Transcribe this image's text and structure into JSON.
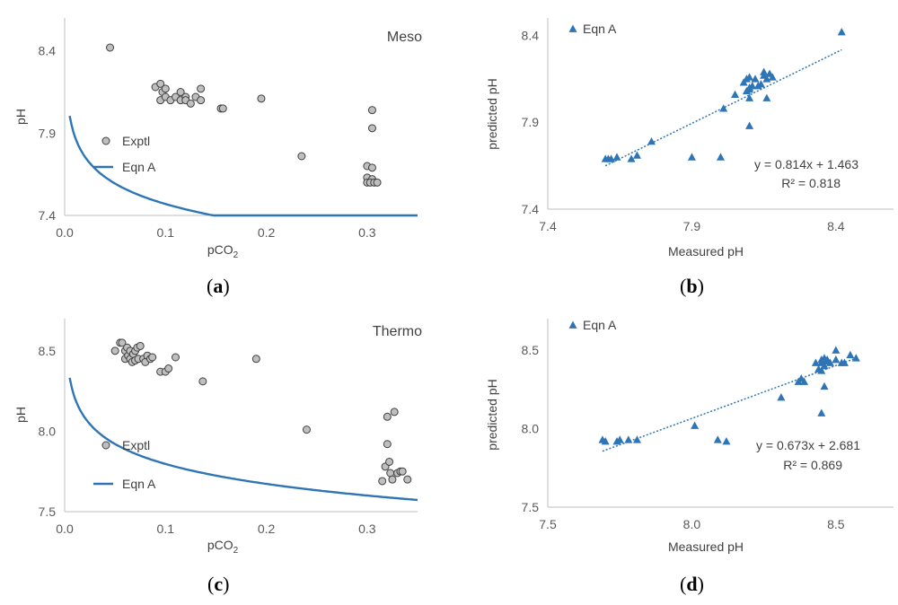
{
  "chart_data": [
    {
      "id": "a",
      "type": "scatter",
      "title": "Meso",
      "xlabel": "pCO2",
      "ylabel": "pH",
      "xlim": [
        0.0,
        0.35
      ],
      "ylim": [
        7.4,
        8.6
      ],
      "xticks": [
        "0.0",
        "0.1",
        "0.2",
        "0.3"
      ],
      "yticks": [
        "7.4",
        "7.9",
        "8.4"
      ],
      "xtick_values": [
        0.0,
        0.1,
        0.2,
        0.3
      ],
      "ytick_values": [
        7.4,
        7.9,
        8.4
      ],
      "legend": [
        "Exptl",
        "Eqn A"
      ],
      "series": [
        {
          "name": "Exptl",
          "kind": "points",
          "x": [
            0.045,
            0.09,
            0.095,
            0.097,
            0.1,
            0.095,
            0.1,
            0.105,
            0.11,
            0.115,
            0.115,
            0.12,
            0.12,
            0.125,
            0.13,
            0.135,
            0.135,
            0.155,
            0.157,
            0.195,
            0.235,
            0.3,
            0.305,
            0.3,
            0.305,
            0.3,
            0.303,
            0.307,
            0.31,
            0.305,
            0.305
          ],
          "y": [
            8.42,
            8.18,
            8.2,
            8.15,
            8.17,
            8.1,
            8.12,
            8.1,
            8.12,
            8.15,
            8.1,
            8.12,
            8.1,
            8.08,
            8.12,
            8.17,
            8.1,
            8.05,
            8.05,
            8.11,
            7.76,
            7.7,
            7.69,
            7.63,
            7.62,
            7.6,
            7.6,
            7.6,
            7.6,
            8.04,
            7.93
          ]
        },
        {
          "name": "Eqn A",
          "kind": "curve",
          "formula": {
            "A": 7.058,
            "B": -0.98
          }
        }
      ]
    },
    {
      "id": "b",
      "type": "scatter",
      "title": "",
      "xlabel": "Measured pH",
      "ylabel": "predicted pH",
      "xlim": [
        7.4,
        8.6
      ],
      "ylim": [
        7.4,
        8.5
      ],
      "xticks": [
        "7.4",
        "7.9",
        "8.4"
      ],
      "yticks": [
        "7.4",
        "7.9",
        "8.4"
      ],
      "xtick_values": [
        7.4,
        7.9,
        8.4
      ],
      "ytick_values": [
        7.4,
        7.9,
        8.4
      ],
      "legend": [
        "Eqn A"
      ],
      "series": [
        {
          "name": "Eqn A",
          "kind": "points",
          "x": [
            7.6,
            7.61,
            7.62,
            7.64,
            7.69,
            7.71,
            7.76,
            7.9,
            8.0,
            8.01,
            8.05,
            8.08,
            8.09,
            8.09,
            8.1,
            8.1,
            8.1,
            8.1,
            8.11,
            8.12,
            8.13,
            8.14,
            8.15,
            8.15,
            8.16,
            8.17,
            8.18,
            8.1,
            8.16,
            8.42
          ],
          "y": [
            7.69,
            7.69,
            7.69,
            7.7,
            7.69,
            7.71,
            7.79,
            7.7,
            7.7,
            7.98,
            8.06,
            8.13,
            8.15,
            8.08,
            8.1,
            8.16,
            8.09,
            8.04,
            8.11,
            8.15,
            8.11,
            8.12,
            8.17,
            8.19,
            8.15,
            8.18,
            8.16,
            7.88,
            8.04,
            8.42
          ]
        },
        {
          "name": "trendline",
          "kind": "trend",
          "slope": 0.814,
          "intercept": 1.463,
          "x_range": [
            7.6,
            8.42
          ]
        }
      ],
      "annotations": [
        "y = 0.814x + 1.463",
        "R² = 0.818"
      ]
    },
    {
      "id": "c",
      "type": "scatter",
      "title": "Thermo",
      "xlabel": "pCO2",
      "ylabel": "pH",
      "xlim": [
        0.0,
        0.35
      ],
      "ylim": [
        7.5,
        8.7
      ],
      "xticks": [
        "0.0",
        "0.1",
        "0.2",
        "0.3"
      ],
      "yticks": [
        "7.5",
        "8.0",
        "8.5"
      ],
      "xtick_values": [
        0.0,
        0.1,
        0.2,
        0.3
      ],
      "ytick_values": [
        7.5,
        8.0,
        8.5
      ],
      "legend": [
        "Exptl",
        "Eqn A"
      ],
      "series": [
        {
          "name": "Exptl",
          "kind": "points",
          "x": [
            0.05,
            0.055,
            0.057,
            0.06,
            0.06,
            0.062,
            0.063,
            0.065,
            0.065,
            0.067,
            0.068,
            0.07,
            0.07,
            0.072,
            0.073,
            0.075,
            0.078,
            0.08,
            0.082,
            0.085,
            0.087,
            0.095,
            0.1,
            0.103,
            0.11,
            0.137,
            0.19,
            0.24,
            0.315,
            0.318,
            0.32,
            0.322,
            0.323,
            0.325,
            0.33,
            0.333,
            0.335,
            0.34,
            0.32,
            0.327
          ],
          "y": [
            8.5,
            8.55,
            8.55,
            8.45,
            8.5,
            8.52,
            8.47,
            8.45,
            8.5,
            8.43,
            8.48,
            8.44,
            8.5,
            8.52,
            8.45,
            8.53,
            8.45,
            8.43,
            8.47,
            8.45,
            8.46,
            8.37,
            8.37,
            8.39,
            8.46,
            8.31,
            8.45,
            8.01,
            7.69,
            7.78,
            7.92,
            7.81,
            7.74,
            7.7,
            7.74,
            7.75,
            7.75,
            7.7,
            8.09,
            8.12
          ]
        },
        {
          "name": "Eqn A",
          "kind": "curve",
          "formula": {
            "A": 7.385,
            "B": -0.98
          }
        }
      ]
    },
    {
      "id": "d",
      "type": "scatter",
      "title": "",
      "xlabel": "Measured pH",
      "ylabel": "predicted pH",
      "xlim": [
        7.5,
        8.7
      ],
      "ylim": [
        7.5,
        8.7
      ],
      "xticks": [
        "7.5",
        "8.0",
        "8.5"
      ],
      "yticks": [
        "7.5",
        "8.0",
        "8.5"
      ],
      "xtick_values": [
        7.5,
        8.0,
        8.5
      ],
      "ytick_values": [
        7.5,
        8.0,
        8.5
      ],
      "legend": [
        "Eqn A"
      ],
      "series": [
        {
          "name": "Eqn A",
          "kind": "points",
          "x": [
            7.69,
            7.7,
            7.74,
            7.75,
            7.78,
            7.81,
            8.01,
            8.09,
            8.12,
            8.31,
            8.37,
            8.38,
            8.39,
            8.43,
            8.44,
            8.45,
            8.45,
            8.45,
            8.46,
            8.46,
            8.47,
            8.47,
            8.48,
            8.5,
            8.5,
            8.52,
            8.53,
            8.55,
            8.57,
            8.45,
            8.46
          ],
          "y": [
            7.93,
            7.92,
            7.92,
            7.93,
            7.93,
            7.93,
            8.02,
            7.93,
            7.92,
            8.2,
            8.3,
            8.32,
            8.3,
            8.42,
            8.38,
            8.37,
            8.42,
            8.44,
            8.45,
            8.4,
            8.43,
            8.44,
            8.42,
            8.5,
            8.44,
            8.42,
            8.42,
            8.47,
            8.45,
            8.1,
            8.27
          ]
        },
        {
          "name": "trendline",
          "kind": "trend",
          "slope": 0.673,
          "intercept": 2.681,
          "x_range": [
            7.69,
            8.57
          ]
        }
      ],
      "annotations": [
        "y = 0.673x + 2.681",
        "R² = 0.869"
      ]
    }
  ],
  "captions": [
    "a",
    "b",
    "c",
    "d"
  ],
  "colors": {
    "series_blue": "#2E75B6",
    "marker_gray": "#BFBFBF",
    "axis": "#BFBFBF"
  }
}
